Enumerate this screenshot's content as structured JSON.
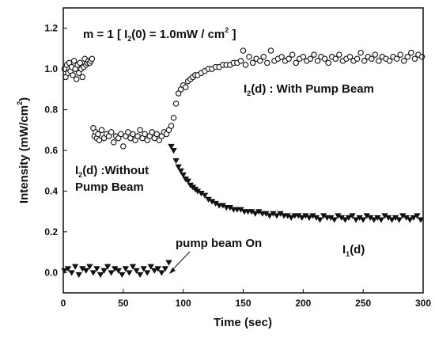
{
  "chart_data": {
    "type": "scatter",
    "xlabel": "Time (sec)",
    "ylabel_main": "Intensity (mW/cm",
    "ylabel_sup": "2",
    "ylabel_close": ")",
    "xlim": [
      0,
      300
    ],
    "ylim": [
      -0.1,
      1.3
    ],
    "xticks": [
      0,
      50,
      100,
      150,
      200,
      250,
      300
    ],
    "yticks": [
      0.0,
      0.2,
      0.4,
      0.6,
      0.8,
      1.0,
      1.2
    ],
    "grid": false,
    "annotations": {
      "params": {
        "prefix": "m = 1 [ I",
        "sub": "2",
        "suffix": "(0) = 1.0mW / cm",
        "sup": "2",
        "close": " ]"
      },
      "with_pump": {
        "prefix": "I",
        "sub": "2",
        "suffix": "(d) : With Pump Beam"
      },
      "without_pump": {
        "prefix": "I",
        "sub": "2",
        "suffix": "(d) :Without",
        "line2": "Pump Beam"
      },
      "i1": {
        "prefix": "I",
        "sub": "1",
        "suffix": "(d)"
      },
      "pump_on": {
        "text": "pump beam On",
        "arrow_to": [
          88,
          0.01
        ]
      }
    },
    "series": [
      {
        "marker": "open-circle",
        "points": [
          [
            1,
            1.0
          ],
          [
            2,
            0.96
          ],
          [
            3,
            1.02
          ],
          [
            4,
            0.98
          ],
          [
            5,
            1.03
          ],
          [
            6,
            0.99
          ],
          [
            7,
            1.01
          ],
          [
            8,
            0.97
          ],
          [
            9,
            1.04
          ],
          [
            10,
            1.0
          ],
          [
            11,
            0.95
          ],
          [
            12,
            1.02
          ],
          [
            13,
            0.98
          ],
          [
            14,
            1.03
          ],
          [
            15,
            1.0
          ],
          [
            16,
            0.96
          ],
          [
            17,
            1.01
          ],
          [
            18,
            1.05
          ],
          [
            19,
            1.02
          ],
          [
            20,
            1.03
          ],
          [
            21,
            1.04
          ],
          [
            22,
            1.03
          ],
          [
            23,
            1.04
          ],
          [
            24,
            1.05
          ],
          [
            25,
            0.71
          ],
          [
            26,
            0.67
          ],
          [
            27,
            0.69
          ],
          [
            28,
            0.66
          ],
          [
            29,
            0.68
          ],
          [
            30,
            0.65
          ],
          [
            32,
            0.7
          ],
          [
            34,
            0.66
          ],
          [
            36,
            0.68
          ],
          [
            38,
            0.67
          ],
          [
            40,
            0.69
          ],
          [
            42,
            0.64
          ],
          [
            44,
            0.67
          ],
          [
            46,
            0.66
          ],
          [
            48,
            0.68
          ],
          [
            50,
            0.62
          ],
          [
            52,
            0.67
          ],
          [
            54,
            0.69
          ],
          [
            56,
            0.66
          ],
          [
            58,
            0.68
          ],
          [
            60,
            0.65
          ],
          [
            62,
            0.67
          ],
          [
            64,
            0.7
          ],
          [
            66,
            0.66
          ],
          [
            68,
            0.68
          ],
          [
            70,
            0.65
          ],
          [
            72,
            0.67
          ],
          [
            74,
            0.69
          ],
          [
            76,
            0.66
          ],
          [
            78,
            0.68
          ],
          [
            80,
            0.65
          ],
          [
            82,
            0.67
          ],
          [
            84,
            0.69
          ],
          [
            86,
            0.68
          ],
          [
            88,
            0.7
          ],
          [
            90,
            0.72
          ],
          [
            92,
            0.76
          ],
          [
            94,
            0.83
          ],
          [
            96,
            0.88
          ],
          [
            98,
            0.9
          ],
          [
            100,
            0.92
          ],
          [
            102,
            0.91
          ],
          [
            104,
            0.94
          ],
          [
            106,
            0.95
          ],
          [
            108,
            0.96
          ],
          [
            110,
            0.97
          ],
          [
            112,
            0.97
          ],
          [
            115,
            0.98
          ],
          [
            118,
            0.99
          ],
          [
            121,
            1.0
          ],
          [
            124,
            1.0
          ],
          [
            127,
            1.01
          ],
          [
            130,
            1.01
          ],
          [
            133,
            1.02
          ],
          [
            136,
            1.02
          ],
          [
            139,
            1.02
          ],
          [
            142,
            1.03
          ],
          [
            145,
            1.03
          ],
          [
            148,
            1.04
          ],
          [
            150,
            1.09
          ],
          [
            152,
            1.02
          ],
          [
            155,
            1.06
          ],
          [
            158,
            1.03
          ],
          [
            161,
            1.05
          ],
          [
            164,
            1.04
          ],
          [
            167,
            1.06
          ],
          [
            170,
            1.03
          ],
          [
            173,
            1.09
          ],
          [
            176,
            1.04
          ],
          [
            179,
            1.05
          ],
          [
            182,
            1.06
          ],
          [
            185,
            1.04
          ],
          [
            188,
            1.05
          ],
          [
            191,
            1.07
          ],
          [
            194,
            1.03
          ],
          [
            197,
            1.05
          ],
          [
            200,
            1.06
          ],
          [
            203,
            1.04
          ],
          [
            206,
            1.05
          ],
          [
            209,
            1.07
          ],
          [
            212,
            1.04
          ],
          [
            215,
            1.06
          ],
          [
            218,
            1.05
          ],
          [
            221,
            1.03
          ],
          [
            224,
            1.06
          ],
          [
            227,
            1.05
          ],
          [
            230,
            1.07
          ],
          [
            233,
            1.04
          ],
          [
            236,
            1.05
          ],
          [
            239,
            1.06
          ],
          [
            242,
            1.04
          ],
          [
            245,
            1.05
          ],
          [
            248,
            1.08
          ],
          [
            251,
            1.04
          ],
          [
            254,
            1.06
          ],
          [
            257,
            1.05
          ],
          [
            260,
            1.07
          ],
          [
            263,
            1.04
          ],
          [
            266,
            1.06
          ],
          [
            269,
            1.05
          ],
          [
            272,
            1.04
          ],
          [
            275,
            1.06
          ],
          [
            278,
            1.05
          ],
          [
            281,
            1.07
          ],
          [
            284,
            1.04
          ],
          [
            287,
            1.06
          ],
          [
            290,
            1.08
          ],
          [
            293,
            1.05
          ],
          [
            296,
            1.07
          ],
          [
            299,
            1.06
          ]
        ]
      },
      {
        "marker": "filled-triangle-down",
        "points": [
          [
            1,
            0.01
          ],
          [
            4,
            0.02
          ],
          [
            7,
            0.0
          ],
          [
            10,
            0.03
          ],
          [
            13,
            -0.01
          ],
          [
            16,
            0.02
          ],
          [
            19,
            0.01
          ],
          [
            22,
            0.03
          ],
          [
            25,
            0.0
          ],
          [
            28,
            0.02
          ],
          [
            31,
            -0.01
          ],
          [
            34,
            0.01
          ],
          [
            37,
            0.03
          ],
          [
            40,
            0.0
          ],
          [
            43,
            0.02
          ],
          [
            46,
            0.01
          ],
          [
            49,
            -0.01
          ],
          [
            52,
            0.02
          ],
          [
            55,
            0.0
          ],
          [
            58,
            0.03
          ],
          [
            61,
            0.01
          ],
          [
            64,
            -0.01
          ],
          [
            67,
            0.02
          ],
          [
            70,
            0.0
          ],
          [
            73,
            0.03
          ],
          [
            76,
            0.01
          ],
          [
            79,
            0.02
          ],
          [
            82,
            0.0
          ],
          [
            85,
            0.02
          ],
          [
            88,
            0.05
          ],
          [
            90,
            0.62
          ],
          [
            92,
            0.6
          ],
          [
            94,
            0.55
          ],
          [
            96,
            0.52
          ],
          [
            98,
            0.5
          ],
          [
            100,
            0.48
          ],
          [
            102,
            0.46
          ],
          [
            104,
            0.45
          ],
          [
            106,
            0.43
          ],
          [
            108,
            0.42
          ],
          [
            110,
            0.41
          ],
          [
            112,
            0.4
          ],
          [
            115,
            0.39
          ],
          [
            118,
            0.38
          ],
          [
            121,
            0.36
          ],
          [
            124,
            0.35
          ],
          [
            127,
            0.34
          ],
          [
            130,
            0.33
          ],
          [
            133,
            0.33
          ],
          [
            136,
            0.32
          ],
          [
            139,
            0.32
          ],
          [
            142,
            0.31
          ],
          [
            145,
            0.31
          ],
          [
            148,
            0.31
          ],
          [
            151,
            0.3
          ],
          [
            154,
            0.3
          ],
          [
            157,
            0.3
          ],
          [
            160,
            0.29
          ],
          [
            163,
            0.3
          ],
          [
            166,
            0.29
          ],
          [
            169,
            0.29
          ],
          [
            172,
            0.28
          ],
          [
            175,
            0.29
          ],
          [
            178,
            0.28
          ],
          [
            181,
            0.29
          ],
          [
            184,
            0.28
          ],
          [
            187,
            0.28
          ],
          [
            190,
            0.27
          ],
          [
            193,
            0.28
          ],
          [
            196,
            0.28
          ],
          [
            199,
            0.27
          ],
          [
            202,
            0.28
          ],
          [
            205,
            0.27
          ],
          [
            208,
            0.28
          ],
          [
            211,
            0.27
          ],
          [
            214,
            0.26
          ],
          [
            217,
            0.28
          ],
          [
            220,
            0.27
          ],
          [
            223,
            0.27
          ],
          [
            226,
            0.26
          ],
          [
            229,
            0.28
          ],
          [
            232,
            0.27
          ],
          [
            235,
            0.26
          ],
          [
            238,
            0.27
          ],
          [
            241,
            0.28
          ],
          [
            244,
            0.26
          ],
          [
            247,
            0.27
          ],
          [
            250,
            0.26
          ],
          [
            253,
            0.28
          ],
          [
            256,
            0.27
          ],
          [
            259,
            0.26
          ],
          [
            262,
            0.27
          ],
          [
            265,
            0.26
          ],
          [
            268,
            0.28
          ],
          [
            271,
            0.27
          ],
          [
            274,
            0.26
          ],
          [
            277,
            0.27
          ],
          [
            280,
            0.26
          ],
          [
            283,
            0.28
          ],
          [
            286,
            0.27
          ],
          [
            289,
            0.26
          ],
          [
            292,
            0.27
          ],
          [
            295,
            0.28
          ],
          [
            298,
            0.26
          ]
        ]
      }
    ]
  }
}
